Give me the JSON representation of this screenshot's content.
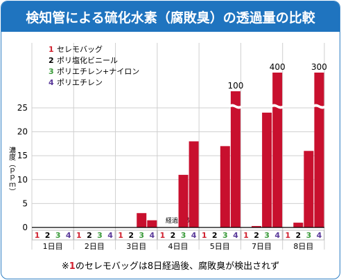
{
  "chart_data": {
    "type": "bar",
    "title": "検知管による硫化水素（腐敗臭）の透過量の比較",
    "ylabel": "濃度（ｐｐｍ）",
    "xlabel": "経過日数",
    "ylim": [
      0,
      25
    ],
    "yticks": [
      "0",
      "5",
      "10",
      "15",
      "20",
      "25"
    ],
    "legend_position": "top-left",
    "groups": [
      "1日目",
      "2日目",
      "3日目",
      "4日目",
      "5日目",
      "7日目",
      "8日目"
    ],
    "bar_ticks": [
      "1",
      "2",
      "3",
      "4"
    ],
    "series": [
      {
        "name": "セレモバッグ",
        "index": "1",
        "color": "#d0202e"
      },
      {
        "name": "ポリ塩化ビニール",
        "index": "2",
        "color": "#000000"
      },
      {
        "name": "ポリエチレン+ナイロン",
        "index": "3",
        "color": "#3a9a3a"
      },
      {
        "name": "ポリエチレン",
        "index": "4",
        "color": "#5a3a9a"
      }
    ],
    "values": [
      [
        0,
        0,
        0,
        0
      ],
      [
        0,
        0,
        0,
        0
      ],
      [
        0,
        0,
        3,
        1.5
      ],
      [
        0,
        0,
        11,
        18
      ],
      [
        0,
        0,
        17,
        100
      ],
      [
        0,
        0.3,
        24,
        400
      ],
      [
        0,
        1,
        16,
        300
      ]
    ],
    "broken_bar_labels": [
      {
        "group": 4,
        "bar": 3,
        "label": "100"
      },
      {
        "group": 5,
        "bar": 3,
        "label": "400"
      },
      {
        "group": 6,
        "bar": 3,
        "label": "300"
      }
    ],
    "bar_color": "#c8102e",
    "footnote": {
      "mark": "※",
      "number": "1",
      "text": "のセレモバッグは8日経過後、腐敗臭が検出されず"
    }
  }
}
